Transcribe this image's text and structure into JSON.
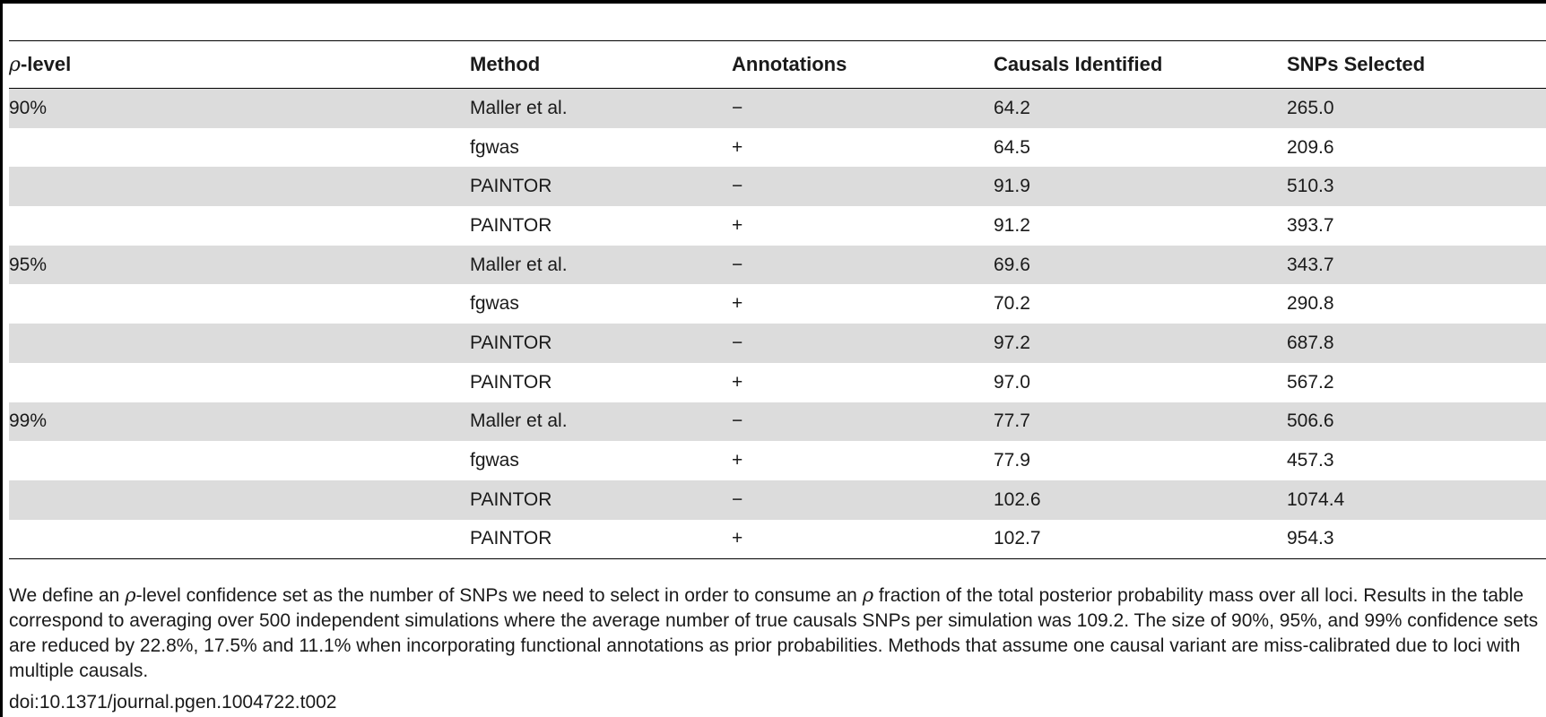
{
  "table": {
    "headers": {
      "rho_symbol": "ρ",
      "rho_level_suffix": "-level",
      "method": "Method",
      "annotations": "Annotations",
      "causals": "Causals Identified",
      "snps": "SNPs Selected"
    },
    "rows": [
      {
        "level": "90%",
        "method": "Maller et al.",
        "annotations": "−",
        "causals": "64.2",
        "snps": "265.0"
      },
      {
        "level": "",
        "method": "fgwas",
        "annotations": "+",
        "causals": "64.5",
        "snps": "209.6"
      },
      {
        "level": "",
        "method": "PAINTOR",
        "annotations": "−",
        "causals": "91.9",
        "snps": "510.3"
      },
      {
        "level": "",
        "method": "PAINTOR",
        "annotations": "+",
        "causals": "91.2",
        "snps": "393.7"
      },
      {
        "level": "95%",
        "method": "Maller et al.",
        "annotations": "−",
        "causals": "69.6",
        "snps": "343.7"
      },
      {
        "level": "",
        "method": "fgwas",
        "annotations": "+",
        "causals": "70.2",
        "snps": "290.8"
      },
      {
        "level": "",
        "method": "PAINTOR",
        "annotations": "−",
        "causals": "97.2",
        "snps": "687.8"
      },
      {
        "level": "",
        "method": "PAINTOR",
        "annotations": "+",
        "causals": "97.0",
        "snps": "567.2"
      },
      {
        "level": "99%",
        "method": "Maller et al.",
        "annotations": "−",
        "causals": "77.7",
        "snps": "506.6"
      },
      {
        "level": "",
        "method": "fgwas",
        "annotations": "+",
        "causals": "77.9",
        "snps": "457.3"
      },
      {
        "level": "",
        "method": "PAINTOR",
        "annotations": "−",
        "causals": "102.6",
        "snps": "1074.4"
      },
      {
        "level": "",
        "method": "PAINTOR",
        "annotations": "+",
        "causals": "102.7",
        "snps": "954.3"
      }
    ]
  },
  "footnote": {
    "part1": "We define an ",
    "rho1": "ρ",
    "part2": "-level confidence set as the number of SNPs we need to select in order to consume an ",
    "rho2": "ρ",
    "part3": " fraction of the total posterior probability mass over all loci. Results in the table correspond to averaging over 500 independent simulations where the average number of true causals SNPs per simulation was 109.2. The size of 90%, 95%, and 99% confidence sets are reduced by 22.8%, 17.5% and 11.1% when incorporating functional annotations as prior probabilities. Methods that assume one causal variant are miss-calibrated due to loci with multiple causals."
  },
  "doi": "doi:10.1371/journal.pgen.1004722.t002"
}
